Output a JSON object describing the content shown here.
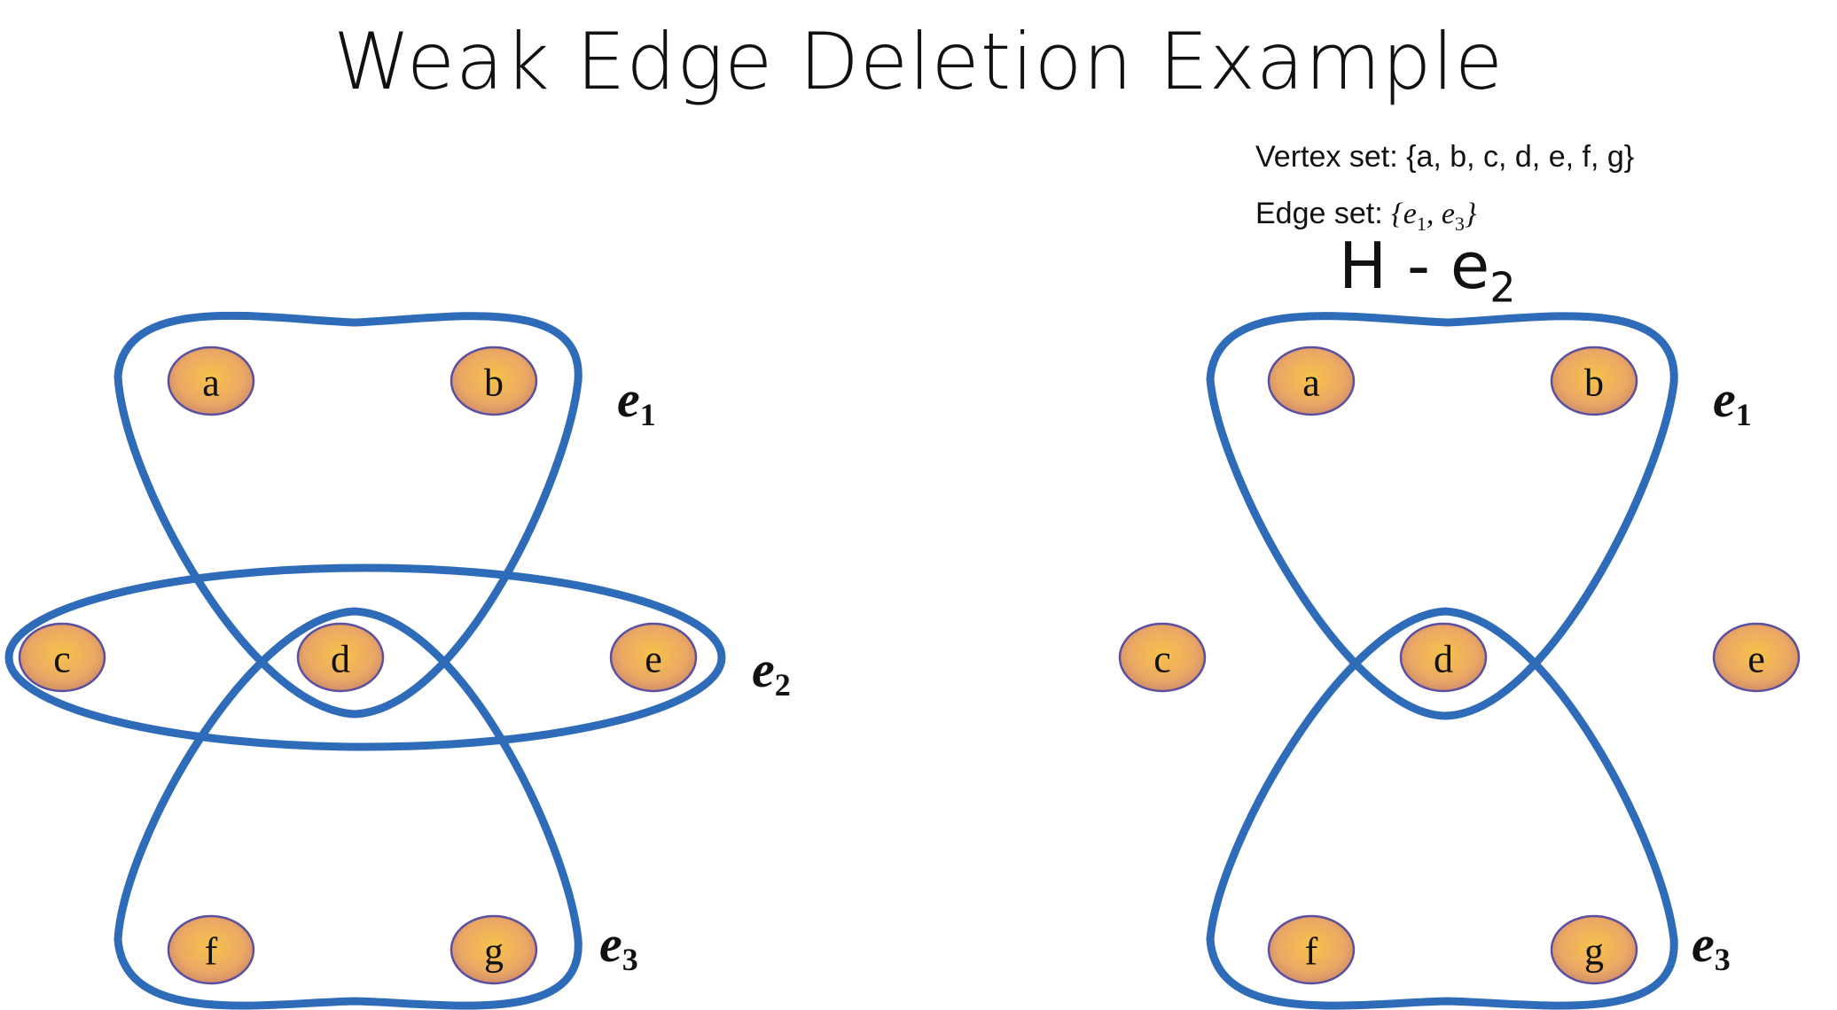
{
  "title": "Weak Edge Deletion Example",
  "info": {
    "vertex_set": "Vertex set: {a, b, c, d, e, f, g}",
    "edge_set_prefix": "Edge set: ",
    "edge_set_open": "{",
    "edge_set_e1": "e",
    "edge_set_e1_sub": "1",
    "edge_set_sep": ", ",
    "edge_set_e3": "e",
    "edge_set_e3_sub": "3",
    "edge_set_close": "}"
  },
  "right_title": {
    "main": "H - e",
    "sub": "2"
  },
  "colors": {
    "edge": "#2e6bb8",
    "node_center": "#f7c24a",
    "node_edge": "#c9876a",
    "node_stroke": "#5a4fa0"
  },
  "left_graph": {
    "nodes": [
      "a",
      "b",
      "c",
      "d",
      "e",
      "f",
      "g"
    ],
    "edge_labels": [
      {
        "main": "e",
        "sub": "1"
      },
      {
        "main": "e",
        "sub": "2"
      },
      {
        "main": "e",
        "sub": "3"
      }
    ]
  },
  "right_graph": {
    "nodes": [
      "a",
      "b",
      "c",
      "d",
      "e",
      "f",
      "g"
    ],
    "edge_labels": [
      {
        "main": "e",
        "sub": "1"
      },
      {
        "main": "e",
        "sub": "3"
      }
    ]
  }
}
